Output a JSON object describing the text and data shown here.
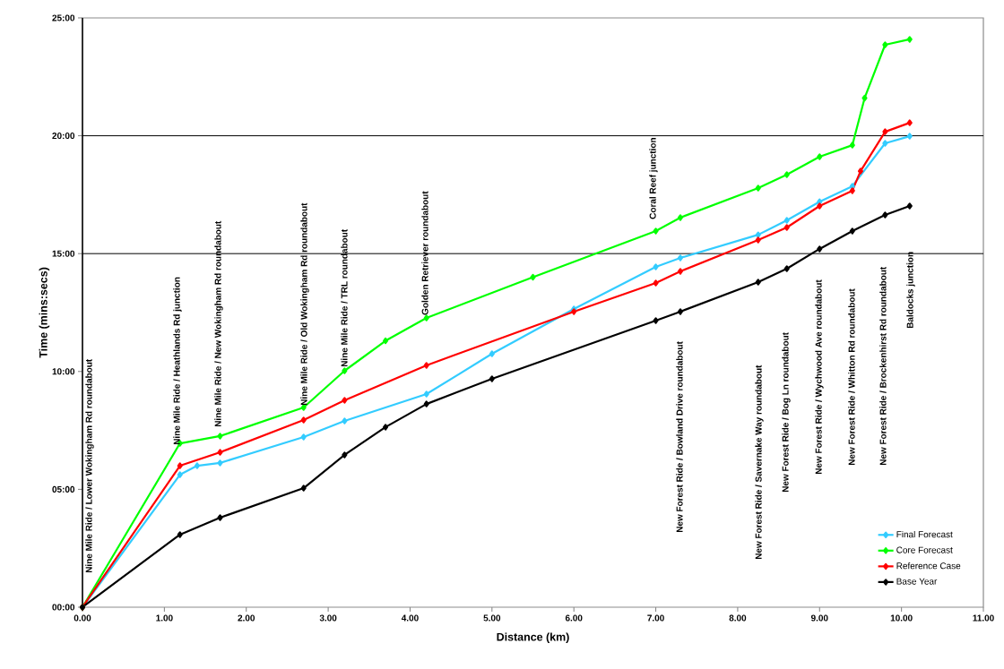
{
  "chart_data": {
    "type": "line",
    "xlabel": "Distance (km)",
    "ylabel": "Time (mins:secs)",
    "xlim": [
      0,
      11
    ],
    "ylim": [
      0,
      25
    ],
    "xticks": [
      {
        "value": 0,
        "label": "0.00"
      },
      {
        "value": 1,
        "label": "1.00"
      },
      {
        "value": 2,
        "label": "2.00"
      },
      {
        "value": 3,
        "label": "3.00"
      },
      {
        "value": 4,
        "label": "4.00"
      },
      {
        "value": 5,
        "label": "5.00"
      },
      {
        "value": 6,
        "label": "6.00"
      },
      {
        "value": 7,
        "label": "7.00"
      },
      {
        "value": 8,
        "label": "8.00"
      },
      {
        "value": 9,
        "label": "9.00"
      },
      {
        "value": 10,
        "label": "10.00"
      },
      {
        "value": 11,
        "label": "11.00"
      }
    ],
    "yticks": [
      {
        "value": 0,
        "label": "00:00"
      },
      {
        "value": 5,
        "label": "05:00"
      },
      {
        "value": 10,
        "label": "10:00"
      },
      {
        "value": 15,
        "label": "15:00"
      },
      {
        "value": 20,
        "label": "20:00"
      },
      {
        "value": 25,
        "label": "25:00"
      }
    ],
    "series": [
      {
        "name": "Final Forecast",
        "color": "#33ccff",
        "x": [
          0,
          1.19,
          1.4,
          1.68,
          2.7,
          3.2,
          4.2,
          5.0,
          6.0,
          7.0,
          7.3,
          8.25,
          8.6,
          9.0,
          9.4,
          9.8,
          10.1
        ],
        "values": [
          0,
          5.62,
          6.0,
          6.12,
          7.22,
          7.9,
          9.04,
          10.75,
          12.65,
          14.44,
          14.82,
          15.8,
          16.41,
          17.2,
          17.86,
          19.68,
          19.98
        ]
      },
      {
        "name": "Core Forecast",
        "color": "#00ff00",
        "x": [
          0,
          1.19,
          1.68,
          2.7,
          3.2,
          3.7,
          4.2,
          5.5,
          7.0,
          7.3,
          8.25,
          8.6,
          9.0,
          9.4,
          9.55,
          9.8,
          10.1
        ],
        "values": [
          0,
          6.95,
          7.26,
          8.47,
          10.03,
          11.3,
          12.27,
          14.0,
          15.96,
          16.53,
          17.78,
          18.35,
          19.11,
          19.6,
          21.6,
          23.86,
          24.09
        ]
      },
      {
        "name": "Reference Case",
        "color": "#ff0000",
        "x": [
          0,
          1.19,
          1.68,
          2.7,
          3.2,
          4.2,
          6.0,
          7.0,
          7.3,
          8.25,
          8.6,
          9.0,
          9.4,
          9.5,
          9.8,
          10.1
        ],
        "values": [
          0,
          6.0,
          6.57,
          7.94,
          8.78,
          10.26,
          12.54,
          13.75,
          14.25,
          15.58,
          16.11,
          17.02,
          17.67,
          18.5,
          20.17,
          20.55
        ]
      },
      {
        "name": "Base Year",
        "color": "#000000",
        "x": [
          0,
          1.19,
          1.68,
          2.7,
          3.2,
          3.7,
          4.2,
          5.0,
          7.0,
          7.3,
          8.25,
          8.6,
          9.0,
          9.4,
          9.8,
          10.1
        ],
        "values": [
          0,
          3.08,
          3.8,
          5.05,
          6.46,
          7.64,
          8.62,
          9.69,
          12.16,
          12.54,
          13.79,
          14.36,
          15.2,
          15.96,
          16.64,
          17.02
        ]
      }
    ],
    "ref_lines": [
      {
        "axis": "y",
        "value": 15,
        "color": "#000000"
      },
      {
        "axis": "y",
        "value": 20,
        "color": "#000000"
      }
    ],
    "annotations": [
      "Nine Mile Ride / Lower Wokingham Rd roundabout",
      "Nine Mile Ride / Heathlands Rd junction",
      "Nine Mile Ride / New Wokingham Rd roundabout",
      "Nine Mile Ride / Old Wokingham Rd roundabout",
      "Nine Mile Ride / TRL roundabout",
      "Golden Retriever roundabout",
      "Coral Reef junction",
      "New Forest Ride / Bowland Drive roundabout",
      "New Forest Ride / Savernake Way roundabout",
      "New Forest Ride / Bog Ln roundabout",
      "New Forest Ride / Wychwood Ave roundabout",
      "New Forest Ride / Whitton Rd roundabout",
      "New Forest Ride / Brockenhirst Rd roundabout",
      "Baldocks junction"
    ],
    "legend": "bottom right",
    "marker": "diamond",
    "line_style": "solid",
    "grid": false
  }
}
